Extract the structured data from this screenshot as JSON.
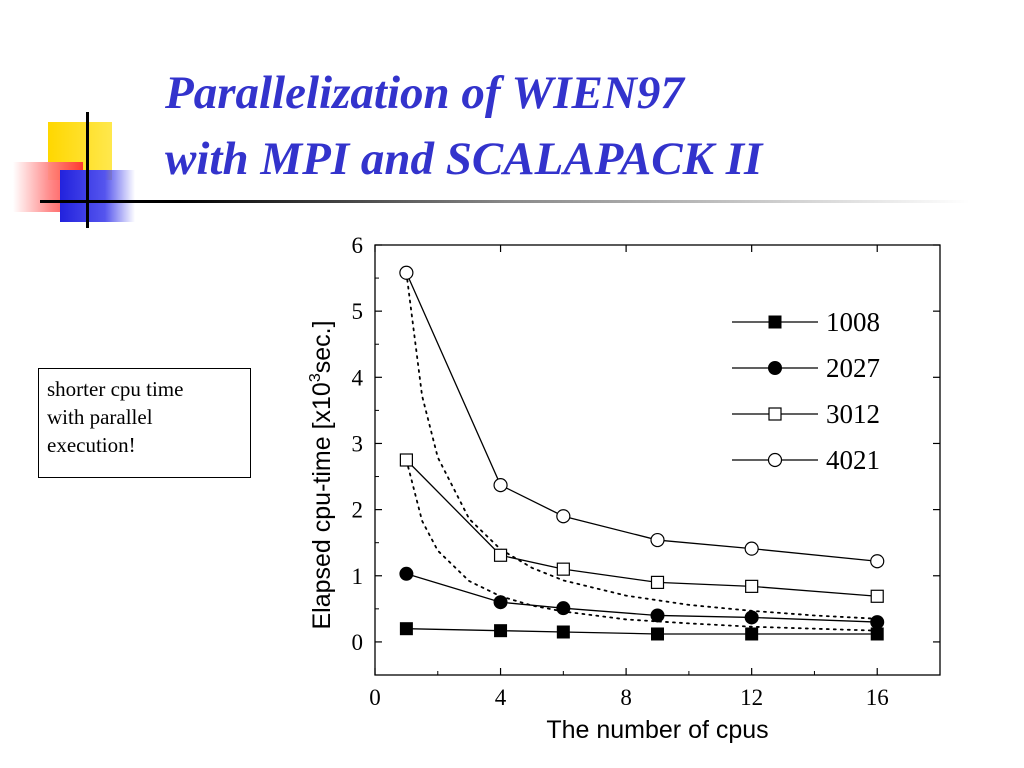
{
  "slide": {
    "title_lines": [
      "Parallelization of WIEN97",
      "with MPI and SCALAPACK II"
    ],
    "note_lines": [
      "shorter cpu time",
      "with parallel",
      "execution!"
    ]
  },
  "chart_data": {
    "type": "line",
    "xlabel": "The number of cpus",
    "ylabel_prefix": "Elapsed cpu-time [x10",
    "ylabel_superscript": "3",
    "ylabel_suffix": "sec.]",
    "xlim": [
      0,
      18
    ],
    "ylim": [
      -0.5,
      6
    ],
    "x_ticks": [
      0,
      4,
      8,
      12,
      16
    ],
    "y_ticks": [
      0,
      1,
      2,
      3,
      4,
      5,
      6
    ],
    "x_minor_ticks": [
      2,
      6,
      10,
      14
    ],
    "y_minor_ticks": [
      0.5,
      1.5,
      2.5,
      3.5,
      4.5,
      5.5
    ],
    "legend_position": "top-right",
    "grid": false,
    "series": [
      {
        "name": "1008",
        "marker": "square-filled",
        "x": [
          1,
          4,
          6,
          9,
          12,
          16
        ],
        "y": [
          0.2,
          0.17,
          0.15,
          0.12,
          0.12,
          0.12
        ]
      },
      {
        "name": "2027",
        "marker": "circle-filled",
        "x": [
          1,
          4,
          6,
          9,
          12,
          16
        ],
        "y": [
          1.03,
          0.6,
          0.51,
          0.4,
          0.37,
          0.3
        ]
      },
      {
        "name": "3012",
        "marker": "square-open",
        "x": [
          1,
          4,
          6,
          9,
          12,
          16
        ],
        "y": [
          2.75,
          1.31,
          1.1,
          0.9,
          0.84,
          0.69
        ]
      },
      {
        "name": "4021",
        "marker": "circle-open",
        "x": [
          1,
          4,
          6,
          9,
          12,
          16
        ],
        "y": [
          5.58,
          2.37,
          1.9,
          1.54,
          1.41,
          1.22
        ]
      }
    ],
    "ideal_curves": [
      {
        "x": [
          1,
          1.5,
          2,
          3,
          4,
          5,
          6,
          8,
          10,
          12,
          14,
          16
        ],
        "y": [
          5.58,
          3.72,
          2.79,
          1.86,
          1.4,
          1.12,
          0.93,
          0.7,
          0.56,
          0.47,
          0.4,
          0.35
        ]
      },
      {
        "x": [
          1,
          1.5,
          2,
          3,
          4,
          5,
          6,
          8,
          10,
          12,
          14,
          16
        ],
        "y": [
          2.75,
          1.83,
          1.38,
          0.92,
          0.69,
          0.55,
          0.46,
          0.34,
          0.28,
          0.23,
          0.2,
          0.17
        ]
      }
    ]
  }
}
